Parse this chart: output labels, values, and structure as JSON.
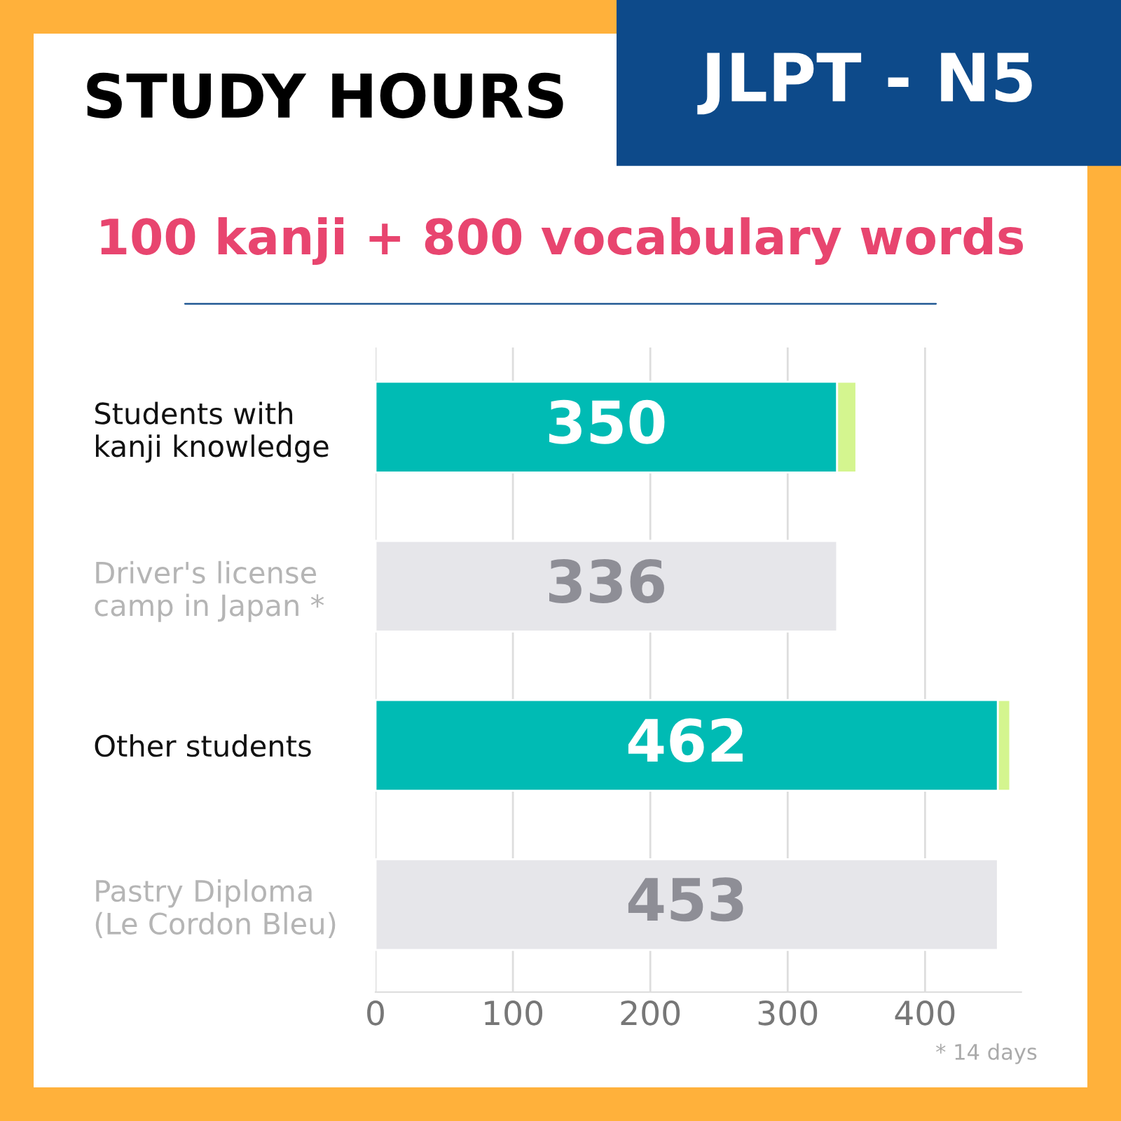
{
  "chart_data": {
    "type": "bar",
    "orientation": "horizontal",
    "stacked": true,
    "title": "STUDY HOURS",
    "subtitle": "100 kanji + 800 vocabulary words",
    "annotations": [
      "JLPT - N5",
      "* 14 days"
    ],
    "categories": [
      "Students with\nkanji knowledge",
      "Driver's license\ncamp in Japan *",
      "Other students",
      "Pastry Diploma\n(Le Cordon Bleu)"
    ],
    "series": [
      {
        "color": "#00bbb4",
        "values": [
          336,
          null,
          453,
          null
        ]
      },
      {
        "color": "#d4f58f",
        "values": [
          14,
          null,
          9,
          null
        ]
      },
      {
        "color": "#e6e6ea",
        "values": [
          null,
          336,
          null,
          453
        ]
      }
    ],
    "totals": [
      "350",
      "336",
      "462",
      "453"
    ],
    "xlim": [
      0,
      470
    ],
    "xticks": [
      0,
      100,
      200,
      300,
      400
    ],
    "grid": "x",
    "legend": false
  }
}
